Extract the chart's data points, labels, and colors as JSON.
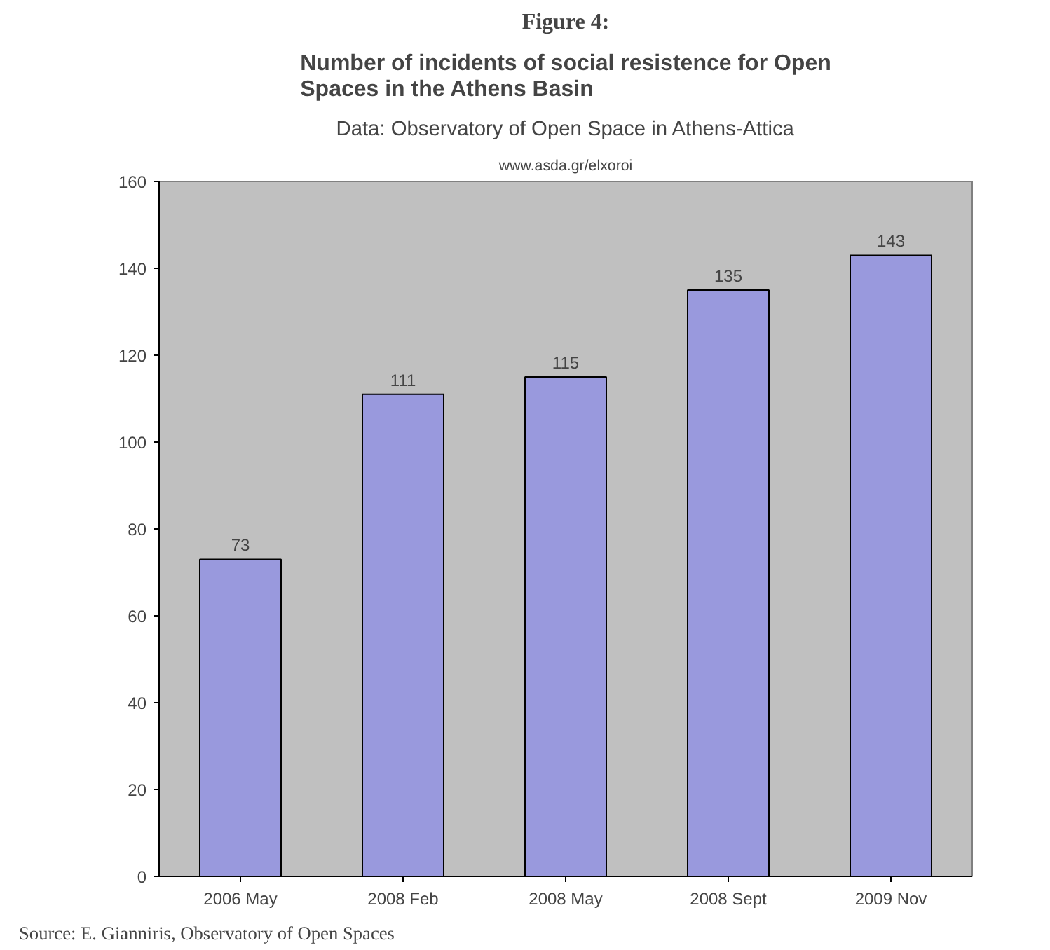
{
  "chart_data": {
    "type": "bar",
    "title": "Number of incidents of social resistence for Open Spaces in the Athens Basin",
    "subtitle": "Data: Observatory of Open Space in Athens-Attica",
    "annotations": [
      "Figure 4:",
      "www.asda.gr/elxoroi",
      "Source: E. Gianniris,  Observatory of Open Spaces"
    ],
    "categories": [
      "2006 May",
      "2008 Feb",
      "2008 May",
      "2008 Sept",
      "2009 Nov"
    ],
    "values": [
      73,
      111,
      115,
      135,
      143
    ],
    "color": "#9999dd",
    "data_labels": true,
    "ylim": [
      0,
      160
    ],
    "yticks": [
      0,
      20,
      40,
      60,
      80,
      100,
      120,
      140,
      160
    ],
    "grid": false
  }
}
